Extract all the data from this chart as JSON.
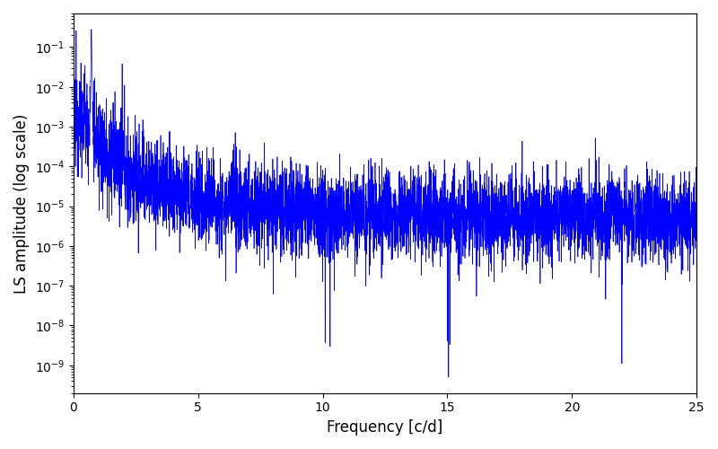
{
  "title": "",
  "xlabel": "Frequency [c/d]",
  "ylabel": "LS amplitude (log scale)",
  "xmin": 0,
  "xmax": 25,
  "ymin": 2e-10,
  "ymax": 0.7,
  "xticks": [
    0,
    5,
    10,
    15,
    20,
    25
  ],
  "line_color": "#0000ff",
  "line_width": 0.5,
  "background_color": "#ffffff",
  "seed": 12345,
  "n_points": 5000,
  "peak_freq": 0.72,
  "peak_amplitude": 0.28,
  "noise_floor_low": 5e-06,
  "noise_floor_high": 5e-06,
  "figsize": [
    8.0,
    5.0
  ],
  "dpi": 100
}
